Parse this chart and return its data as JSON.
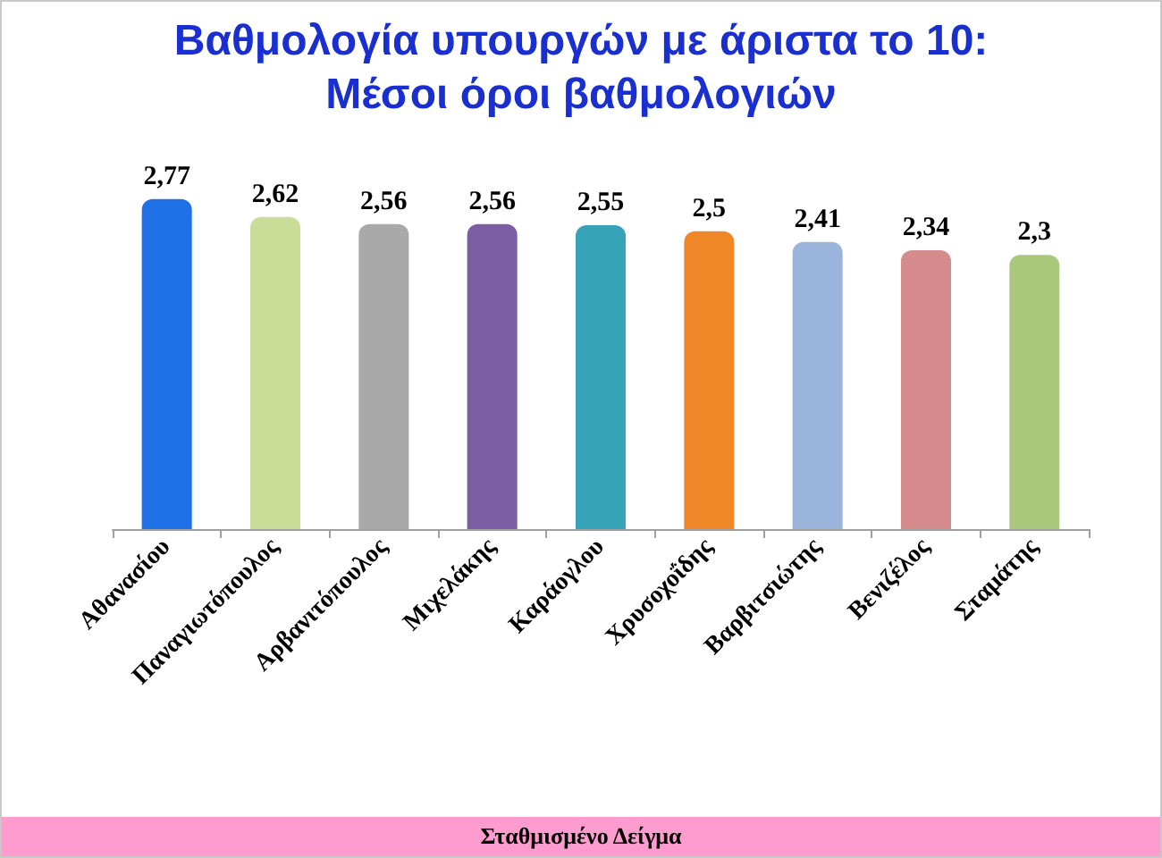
{
  "chart_data": {
    "type": "bar",
    "title": "Βαθμολογία υπουργών με άριστα το 10:\nΜέσοι όροι βαθμολογιών",
    "categories": [
      "Αθανασίου",
      "Παναγιωτόπουλος",
      "Αρβανιτόπουλος",
      "Μιχελάκης",
      "Καράογλου",
      "Χρυσοχοΐδης",
      "Βαρβιτσιώτης",
      "Βενιζέλος",
      "Σταμάτης"
    ],
    "values": [
      2.77,
      2.62,
      2.56,
      2.56,
      2.55,
      2.5,
      2.41,
      2.34,
      2.3
    ],
    "value_labels": [
      "2,77",
      "2,62",
      "2,56",
      "2,56",
      "2,55",
      "2,5",
      "2,41",
      "2,34",
      "2,3"
    ],
    "colors": [
      "#1f6fe6",
      "#c9dc98",
      "#a9a9a9",
      "#7b5ea3",
      "#36a3b8",
      "#f0882a",
      "#9ab4dc",
      "#d68c8c",
      "#aac87c"
    ],
    "annotations": [
      "Σταθμισμένο Δείγμα"
    ]
  }
}
